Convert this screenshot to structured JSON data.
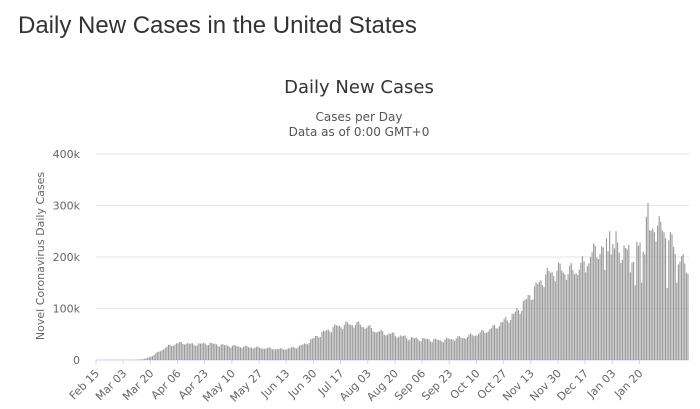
{
  "page": {
    "heading": "Daily New Cases in the United States"
  },
  "chart_data": {
    "type": "bar",
    "title": "Daily New Cases",
    "subtitle_lines": [
      "Cases per Day",
      "Data as of 0:00 GMT+0"
    ],
    "ylabel": "Novel Coronavirus Daily Cases",
    "xlabel": "",
    "ylim": [
      0,
      400000
    ],
    "y_ticks": [
      0,
      100000,
      200000,
      300000,
      400000
    ],
    "y_tick_labels": [
      "0",
      "100k",
      "200k",
      "300k",
      "400k"
    ],
    "x_tick_labels": [
      "Feb 15",
      "Mar 03",
      "Mar 20",
      "Apr 06",
      "Apr 23",
      "May 10",
      "May 27",
      "Jun 13",
      "Jun 30",
      "Jul 17",
      "Aug 03",
      "Aug 20",
      "Sep 06",
      "Sep 23",
      "Oct 10",
      "Oct 27",
      "Nov 13",
      "Nov 30",
      "Dec 17",
      "Jan 03",
      "Jan 20"
    ],
    "x_tick_every_days": 17,
    "series_name": "Daily Cases",
    "bar_color": "#999999",
    "grid": true,
    "legend": "none",
    "start_date": "Feb 15",
    "end_date": "Jan 20",
    "trend_anchors": [
      [
        0,
        0
      ],
      [
        25,
        400
      ],
      [
        30,
        2000
      ],
      [
        35,
        8000
      ],
      [
        40,
        18000
      ],
      [
        45,
        27000
      ],
      [
        50,
        32000
      ],
      [
        55,
        33000
      ],
      [
        60,
        30000
      ],
      [
        65,
        31000
      ],
      [
        70,
        32000
      ],
      [
        75,
        30000
      ],
      [
        80,
        28000
      ],
      [
        90,
        26000
      ],
      [
        100,
        24000
      ],
      [
        110,
        22000
      ],
      [
        115,
        21000
      ],
      [
        120,
        22000
      ],
      [
        125,
        25000
      ],
      [
        130,
        30000
      ],
      [
        135,
        40000
      ],
      [
        140,
        50000
      ],
      [
        145,
        58000
      ],
      [
        150,
        65000
      ],
      [
        155,
        68000
      ],
      [
        160,
        70000
      ],
      [
        165,
        68000
      ],
      [
        170,
        63000
      ],
      [
        175,
        56000
      ],
      [
        180,
        52000
      ],
      [
        185,
        50000
      ],
      [
        190,
        46000
      ],
      [
        195,
        43000
      ],
      [
        200,
        41000
      ],
      [
        205,
        40000
      ],
      [
        210,
        39000
      ],
      [
        215,
        38000
      ],
      [
        220,
        40000
      ],
      [
        225,
        42000
      ],
      [
        230,
        44000
      ],
      [
        235,
        48000
      ],
      [
        240,
        52000
      ],
      [
        245,
        58000
      ],
      [
        250,
        65000
      ],
      [
        255,
        75000
      ],
      [
        260,
        85000
      ],
      [
        265,
        100000
      ],
      [
        270,
        120000
      ],
      [
        275,
        140000
      ],
      [
        280,
        160000
      ],
      [
        285,
        170000
      ],
      [
        290,
        175000
      ],
      [
        295,
        170000
      ],
      [
        300,
        175000
      ],
      [
        305,
        185000
      ],
      [
        310,
        205000
      ],
      [
        315,
        215000
      ],
      [
        320,
        220000
      ],
      [
        325,
        212000
      ],
      [
        330,
        210000
      ],
      [
        335,
        210000
      ],
      [
        340,
        220000
      ],
      [
        345,
        240000
      ],
      [
        350,
        260000
      ],
      [
        355,
        250000
      ],
      [
        360,
        225000
      ],
      [
        365,
        195000
      ],
      [
        370,
        175000
      ]
    ],
    "spikes": [
      [
        321,
        250000
      ],
      [
        325,
        250000
      ],
      [
        344,
        278000
      ],
      [
        345,
        305000
      ],
      [
        349,
        248000
      ]
    ],
    "dips": [
      [
        306,
        170000
      ],
      [
        318,
        175000
      ],
      [
        334,
        170000
      ],
      [
        337,
        145000
      ],
      [
        341,
        150000
      ],
      [
        357,
        140000
      ],
      [
        363,
        150000
      ]
    ]
  }
}
